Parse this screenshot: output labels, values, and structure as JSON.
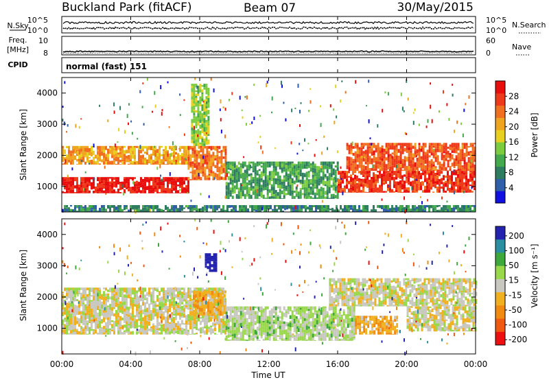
{
  "header": {
    "station": "Buckland Park (fitACF)",
    "beam": "Beam 07",
    "date": "30/May/2015"
  },
  "top_panels": {
    "nsky_label": "N.Sky",
    "nsky_ticks": [
      "10^5",
      "10^0"
    ],
    "nsearch_label": "N.Search",
    "nsearch_ticks": [
      "10^5",
      "10^0"
    ],
    "freq_label_1": "Freq.",
    "freq_label_2": "[MHz]",
    "freq_ticks": [
      "10",
      "8"
    ],
    "nave_label": "Nave",
    "nave_ticks": [
      "60",
      "0"
    ],
    "cpid_label": "CPID",
    "cpid_value": "normal (fast) 151"
  },
  "x_axis": {
    "label": "Time UT",
    "ticks": [
      "00:00",
      "04:00",
      "08:00",
      "12:00",
      "16:00",
      "20:00",
      "00:00"
    ]
  },
  "y_axis": {
    "label": "Slant Range [km]",
    "ticks": [
      "1000",
      "2000",
      "3000",
      "4000"
    ]
  },
  "colorbars": {
    "power": {
      "label": "Power [dB]",
      "ticks": [
        "4",
        "8",
        "12",
        "16",
        "20",
        "24",
        "28"
      ],
      "colors": [
        "#1010e0",
        "#2f5fa8",
        "#2e7d60",
        "#44a84c",
        "#7ccc3f",
        "#e8d020",
        "#f0a520",
        "#f07020",
        "#ee3a1a",
        "#e80e0e"
      ]
    },
    "velocity": {
      "label": "Velocity [m s⁻¹]",
      "ticks": [
        "200",
        "100",
        "50",
        "15",
        "-15",
        "-50",
        "-100",
        "-200"
      ],
      "colors": [
        "#2323b0",
        "#2a8fa0",
        "#3fa83c",
        "#98d84a",
        "#c8c8c0",
        "#f0b020",
        "#f08a10",
        "#f05a10",
        "#ee1010"
      ]
    }
  },
  "chart_data": [
    {
      "type": "heatmap",
      "title": "Power [dB]",
      "xlabel": "Time UT",
      "ylabel": "Slant Range [km]",
      "x_range_hours": [
        0,
        24
      ],
      "ylim": [
        180,
        4500
      ],
      "colorbar_range": [
        0,
        30
      ],
      "bands": [
        {
          "t_start": 0.0,
          "t_end": 7.3,
          "range_low": 780,
          "range_high": 1300,
          "value": 28
        },
        {
          "t_start": 0.0,
          "t_end": 7.3,
          "range_low": 1700,
          "range_high": 2300,
          "value": 20
        },
        {
          "t_start": 7.3,
          "t_end": 9.5,
          "range_low": 1200,
          "range_high": 2300,
          "value": 22
        },
        {
          "t_start": 7.5,
          "t_end": 8.5,
          "range_low": 2300,
          "range_high": 4300,
          "value": 14
        },
        {
          "t_start": 9.5,
          "t_end": 16.0,
          "range_low": 600,
          "range_high": 1800,
          "value": 10
        },
        {
          "t_start": 16.0,
          "t_end": 24.0,
          "range_low": 800,
          "range_high": 1500,
          "value": 26
        },
        {
          "t_start": 16.5,
          "t_end": 24.0,
          "range_low": 1500,
          "range_high": 2400,
          "value": 24
        },
        {
          "t_start": 0.0,
          "t_end": 24.0,
          "range_low": 180,
          "range_high": 400,
          "value": 8
        }
      ]
    },
    {
      "type": "heatmap",
      "title": "Velocity [m s⁻¹]",
      "xlabel": "Time UT",
      "ylabel": "Slant Range [km]",
      "x_range_hours": [
        0,
        24
      ],
      "ylim": [
        180,
        4500
      ],
      "colorbar_range": [
        -200,
        200
      ],
      "bands": [
        {
          "t_start": 0.0,
          "t_end": 9.5,
          "range_low": 800,
          "range_high": 2300,
          "value": 0
        },
        {
          "t_start": 7.6,
          "t_end": 9.5,
          "range_low": 1400,
          "range_high": 2200,
          "value": -50
        },
        {
          "t_start": 9.5,
          "t_end": 17.0,
          "range_low": 600,
          "range_high": 1700,
          "value": 30
        },
        {
          "t_start": 17.0,
          "t_end": 19.5,
          "range_low": 800,
          "range_high": 1400,
          "value": -50
        },
        {
          "t_start": 15.5,
          "t_end": 24.0,
          "range_low": 1700,
          "range_high": 2600,
          "value": 0
        },
        {
          "t_start": 20.0,
          "t_end": 24.0,
          "range_low": 900,
          "range_high": 1700,
          "value": 0
        },
        {
          "t_start": 8.3,
          "t_end": 9.0,
          "range_low": 2800,
          "range_high": 3400,
          "value": 200
        }
      ]
    }
  ]
}
